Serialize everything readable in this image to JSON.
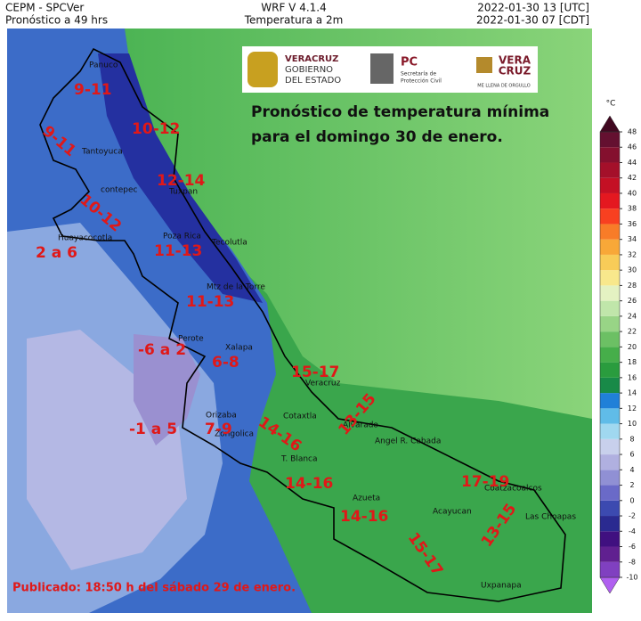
{
  "header": {
    "left": [
      "CEPM - SPCVer",
      "Pronóstico a 49 hrs"
    ],
    "center": [
      "WRF V 4.1.4",
      "Temperatura a 2m"
    ],
    "right": [
      "2022-01-30 13 [UTC]",
      "2022-01-30 07 [CDT]"
    ]
  },
  "logos": {
    "gobierno": [
      "VERACRUZ",
      "GOBIERNO",
      "DEL ESTADO"
    ],
    "pc": [
      "PC",
      "Secretaría de",
      "Protección Civil"
    ],
    "veracruz": [
      "VERA",
      "CRUZ",
      "ME LLENA DE ORGULLO"
    ]
  },
  "title": [
    "Pronóstico de temperatura mínima",
    "para el domingo 30 de enero."
  ],
  "colorbar": {
    "unit": "°C",
    "ticks": [
      -10,
      -8,
      -6,
      -4,
      -2,
      0,
      2,
      4,
      6,
      8,
      10,
      12,
      14,
      16,
      18,
      20,
      22,
      24,
      26,
      28,
      30,
      32,
      34,
      36,
      38,
      40,
      42,
      44,
      46,
      48
    ],
    "colors": [
      "#b060f0",
      "#8040c0",
      "#602090",
      "#401080",
      "#2a2a90",
      "#3c4ab0",
      "#6a6ac8",
      "#9090d4",
      "#b0b0e0",
      "#c8d0ec",
      "#a0d8f0",
      "#60bce8",
      "#2080d8",
      "#188a48",
      "#2a9c3e",
      "#46ae4a",
      "#6cc064",
      "#98d486",
      "#c0e6aa",
      "#e4f2c2",
      "#f8e88c",
      "#f8cc58",
      "#f8a838",
      "#f87c28",
      "#f84020",
      "#e41820",
      "#c41024",
      "#a4102a",
      "#84102e",
      "#641030",
      "#400820"
    ]
  },
  "places": [
    "Panuco",
    "Tantoyuca",
    "Tuxpan",
    "contepec",
    "Huayacocotla",
    "Poza Rica",
    "Tecolutla",
    "Mtz de la Torre",
    "Perote",
    "Xalapa",
    "Veracruz",
    "Orizaba",
    "Cotaxtla",
    "Alvarado",
    "Zongolica",
    "T. Blanca",
    "Angel R. Cabada",
    "Azueta",
    "Acayucan",
    "Coatzacoalcos",
    "Las Choapas",
    "Uxpanapa"
  ],
  "forecasts": [
    "9-11",
    "10-12",
    "9-11",
    "12-14",
    "10-12",
    "2 a 6",
    "11-13",
    "11-13",
    "-6 a 2",
    "6-8",
    "15-17",
    "14-16",
    "13-15",
    "-1 a 5",
    "7-9",
    "14-16",
    "14-16",
    "17-19",
    "15-17",
    "13-15"
  ],
  "footer": "Publicado: 18:50 h del sábado 29 de enero."
}
